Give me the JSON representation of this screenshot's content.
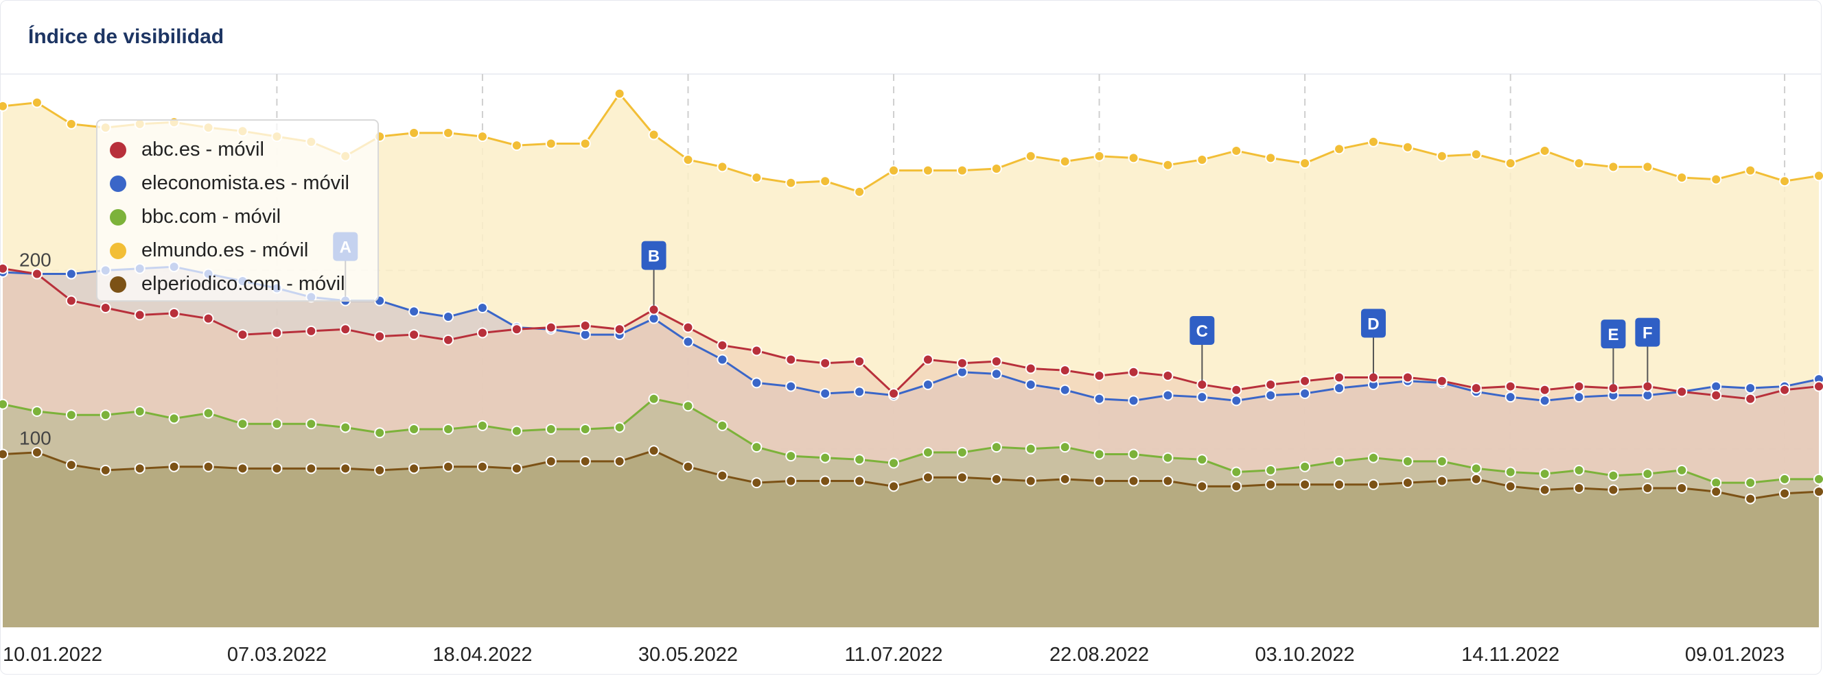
{
  "title": "Índice de visibilidad",
  "legend": [
    {
      "label": "abc.es - móvil",
      "color": "#b8303b"
    },
    {
      "label": "eleconomista.es - móvil",
      "color": "#3a66c8"
    },
    {
      "label": "bbc.com - móvil",
      "color": "#7cb23a"
    },
    {
      "label": "elmundo.es - móvil",
      "color": "#f2be36"
    },
    {
      "label": "elperiodico.com - móvil",
      "color": "#7c5216"
    }
  ],
  "chart_data": {
    "type": "area",
    "title": "Índice de visibilidad",
    "stacked": false,
    "grid": true,
    "legend_position": "top-left",
    "y_ticks": [
      100,
      200
    ],
    "ylim": [
      0,
      310
    ],
    "x_tick_labels": [
      "10.01.2022",
      "07.03.2022",
      "18.04.2022",
      "30.05.2022",
      "11.07.2022",
      "22.08.2022",
      "03.10.2022",
      "14.11.2022",
      "09.01.2023"
    ],
    "x_tick_index": [
      0,
      8,
      14,
      20,
      26,
      32,
      38,
      44,
      52
    ],
    "x": [
      "10.01.2022",
      "17.01.2022",
      "24.01.2022",
      "31.01.2022",
      "07.02.2022",
      "14.02.2022",
      "21.02.2022",
      "28.02.2022",
      "07.03.2022",
      "14.03.2022",
      "21.03.2022",
      "28.03.2022",
      "04.04.2022",
      "11.04.2022",
      "18.04.2022",
      "25.04.2022",
      "02.05.2022",
      "09.05.2022",
      "16.05.2022",
      "23.05.2022",
      "30.05.2022",
      "06.06.2022",
      "13.06.2022",
      "20.06.2022",
      "27.06.2022",
      "04.07.2022",
      "11.07.2022",
      "18.07.2022",
      "25.07.2022",
      "01.08.2022",
      "08.08.2022",
      "15.08.2022",
      "22.08.2022",
      "29.08.2022",
      "05.09.2022",
      "12.09.2022",
      "19.09.2022",
      "26.09.2022",
      "03.10.2022",
      "10.10.2022",
      "17.10.2022",
      "24.10.2022",
      "31.10.2022",
      "07.11.2022",
      "14.11.2022",
      "21.11.2022",
      "28.11.2022",
      "05.12.2022",
      "12.12.2022",
      "19.12.2022",
      "26.12.2022",
      "02.01.2023",
      "09.01.2023",
      "16.01.2023"
    ],
    "series": [
      {
        "name": "abc.es - móvil",
        "color": "#b8303b",
        "values": [
          201,
          198,
          183,
          179,
          175,
          176,
          173,
          164,
          165,
          166,
          167,
          163,
          164,
          161,
          165,
          167,
          168,
          169,
          167,
          178,
          168,
          158,
          155,
          150,
          148,
          149,
          131,
          150,
          148,
          149,
          145,
          144,
          141,
          143,
          141,
          136,
          133,
          136,
          138,
          140,
          140,
          140,
          138,
          134,
          135,
          133,
          135,
          134,
          135,
          132,
          130,
          128,
          133,
          135
        ]
      },
      {
        "name": "eleconomista.es - móvil",
        "color": "#3a66c8",
        "values": [
          199,
          198,
          198,
          200,
          201,
          202,
          198,
          194,
          190,
          185,
          183,
          183,
          177,
          174,
          179,
          168,
          167,
          164,
          164,
          173,
          160,
          150,
          137,
          135,
          131,
          132,
          130,
          136,
          143,
          142,
          136,
          133,
          128,
          127,
          130,
          129,
          127,
          130,
          131,
          134,
          136,
          138,
          137,
          132,
          129,
          127,
          129,
          130,
          130,
          132,
          135,
          134,
          135,
          139
        ]
      },
      {
        "name": "bbc.com - móvil",
        "color": "#7cb23a",
        "values": [
          125,
          121,
          119,
          119,
          121,
          117,
          120,
          114,
          114,
          114,
          112,
          109,
          111,
          111,
          113,
          110,
          111,
          111,
          112,
          128,
          124,
          113,
          101,
          96,
          95,
          94,
          92,
          98,
          98,
          101,
          100,
          101,
          97,
          97,
          95,
          94,
          87,
          88,
          90,
          93,
          95,
          93,
          93,
          89,
          87,
          86,
          88,
          85,
          86,
          88,
          81,
          81,
          83,
          83
        ]
      },
      {
        "name": "elmundo.es - móvil",
        "color": "#f2be36",
        "values": [
          292,
          294,
          282,
          280,
          282,
          283,
          280,
          278,
          275,
          272,
          264,
          275,
          277,
          277,
          275,
          270,
          271,
          271,
          299,
          276,
          262,
          258,
          252,
          249,
          250,
          244,
          256,
          256,
          256,
          257,
          264,
          261,
          264,
          263,
          259,
          262,
          267,
          263,
          260,
          268,
          272,
          269,
          264,
          265,
          260,
          267,
          260,
          258,
          258,
          252,
          251,
          256,
          250,
          253
        ]
      },
      {
        "name": "elperiodico.com - móvil",
        "color": "#7c5216",
        "values": [
          97,
          98,
          91,
          88,
          89,
          90,
          90,
          89,
          89,
          89,
          89,
          88,
          89,
          90,
          90,
          89,
          93,
          93,
          93,
          99,
          90,
          85,
          81,
          82,
          82,
          82,
          79,
          84,
          84,
          83,
          82,
          83,
          82,
          82,
          82,
          79,
          79,
          80,
          80,
          80,
          80,
          81,
          82,
          83,
          79,
          77,
          78,
          77,
          78,
          78,
          76,
          72,
          75,
          76
        ]
      }
    ],
    "annotations": [
      {
        "label": "A",
        "index": 10
      },
      {
        "label": "B",
        "index": 19
      },
      {
        "label": "C",
        "index": 35
      },
      {
        "label": "D",
        "index": 40
      },
      {
        "label": "E",
        "index": 47
      },
      {
        "label": "F",
        "index": 48
      }
    ]
  }
}
